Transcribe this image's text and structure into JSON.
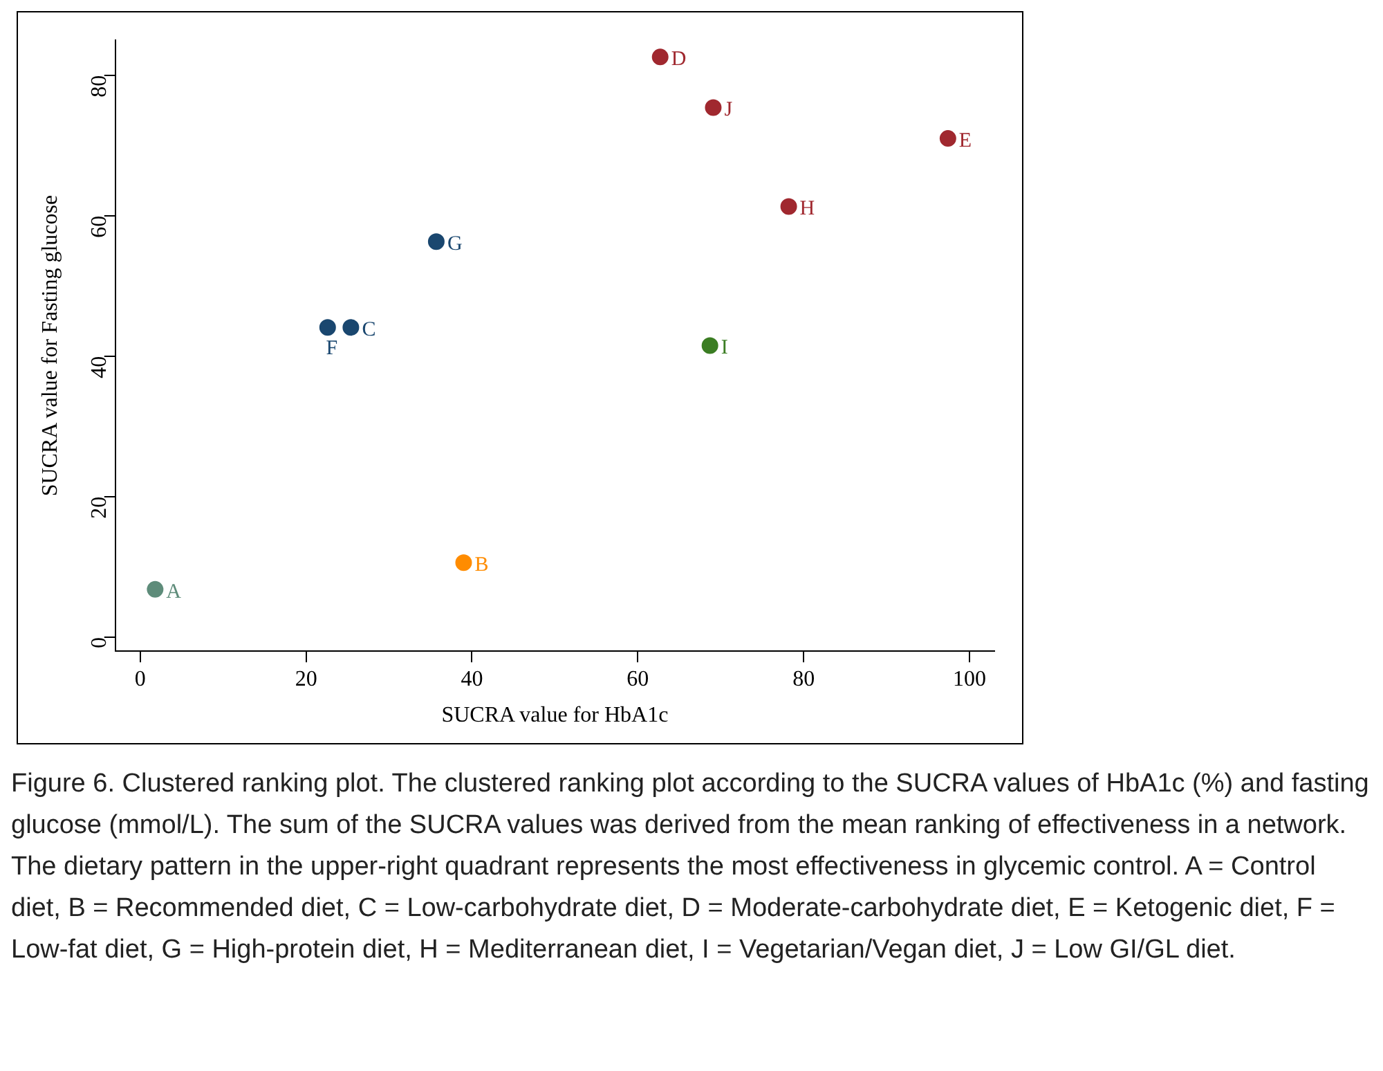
{
  "chart_data": {
    "type": "scatter",
    "xlabel": "SUCRA value for HbA1c",
    "ylabel": "SUCRA value for Fasting glucose",
    "xlim": [
      -3,
      103
    ],
    "ylim": [
      -2,
      85
    ],
    "xticks": [
      0,
      20,
      40,
      60,
      80,
      100
    ],
    "yticks": [
      0,
      20,
      40,
      60,
      80
    ],
    "grid": false,
    "legend": false,
    "marker": "circle",
    "series": [
      {
        "name": "A",
        "color": "#5e8c7a",
        "x": [
          1.8
        ],
        "values": [
          6.8
        ]
      },
      {
        "name": "B",
        "color": "#ff8c00",
        "x": [
          39
        ],
        "values": [
          10.6
        ]
      },
      {
        "name": "C",
        "color": "#1a476f",
        "x": [
          25.4
        ],
        "values": [
          44.1
        ]
      },
      {
        "name": "D",
        "color": "#a0282f",
        "x": [
          62.7
        ],
        "values": [
          82.6
        ]
      },
      {
        "name": "E",
        "color": "#a0282f",
        "x": [
          97.4
        ],
        "values": [
          71.0
        ]
      },
      {
        "name": "F",
        "color": "#1a476f",
        "x": [
          22.6
        ],
        "values": [
          44.1
        ]
      },
      {
        "name": "G",
        "color": "#1a476f",
        "x": [
          35.7
        ],
        "values": [
          56.3
        ]
      },
      {
        "name": "H",
        "color": "#a0282f",
        "x": [
          78.2
        ],
        "values": [
          61.3
        ]
      },
      {
        "name": "I",
        "color": "#3b7d23",
        "x": [
          68.7
        ],
        "values": [
          41.5
        ]
      },
      {
        "name": "J",
        "color": "#a0282f",
        "x": [
          69.1
        ],
        "values": [
          75.4
        ]
      }
    ],
    "annotations": [
      "Figure 6. Clustered ranking plot. The clustered ranking plot according to the SUCRA values of HbA1c (%) and fasting glucose (mmol/L). The sum of the SUCRA values was derived from the mean ranking of effectiveness in a network. The dietary pattern in the upper-right quadrant represents the most effectiveness in glycemic control. A = Control diet, B = Recommended diet, C = Low-carbohydrate diet, D = Moderate-carbohydrate diet, E = Ketogenic diet, F = Low-fat diet, G = High-protein diet, H = Mediterranean diet, I = Vegetarian/Vegan diet, J = Low GI/GL diet."
    ]
  }
}
